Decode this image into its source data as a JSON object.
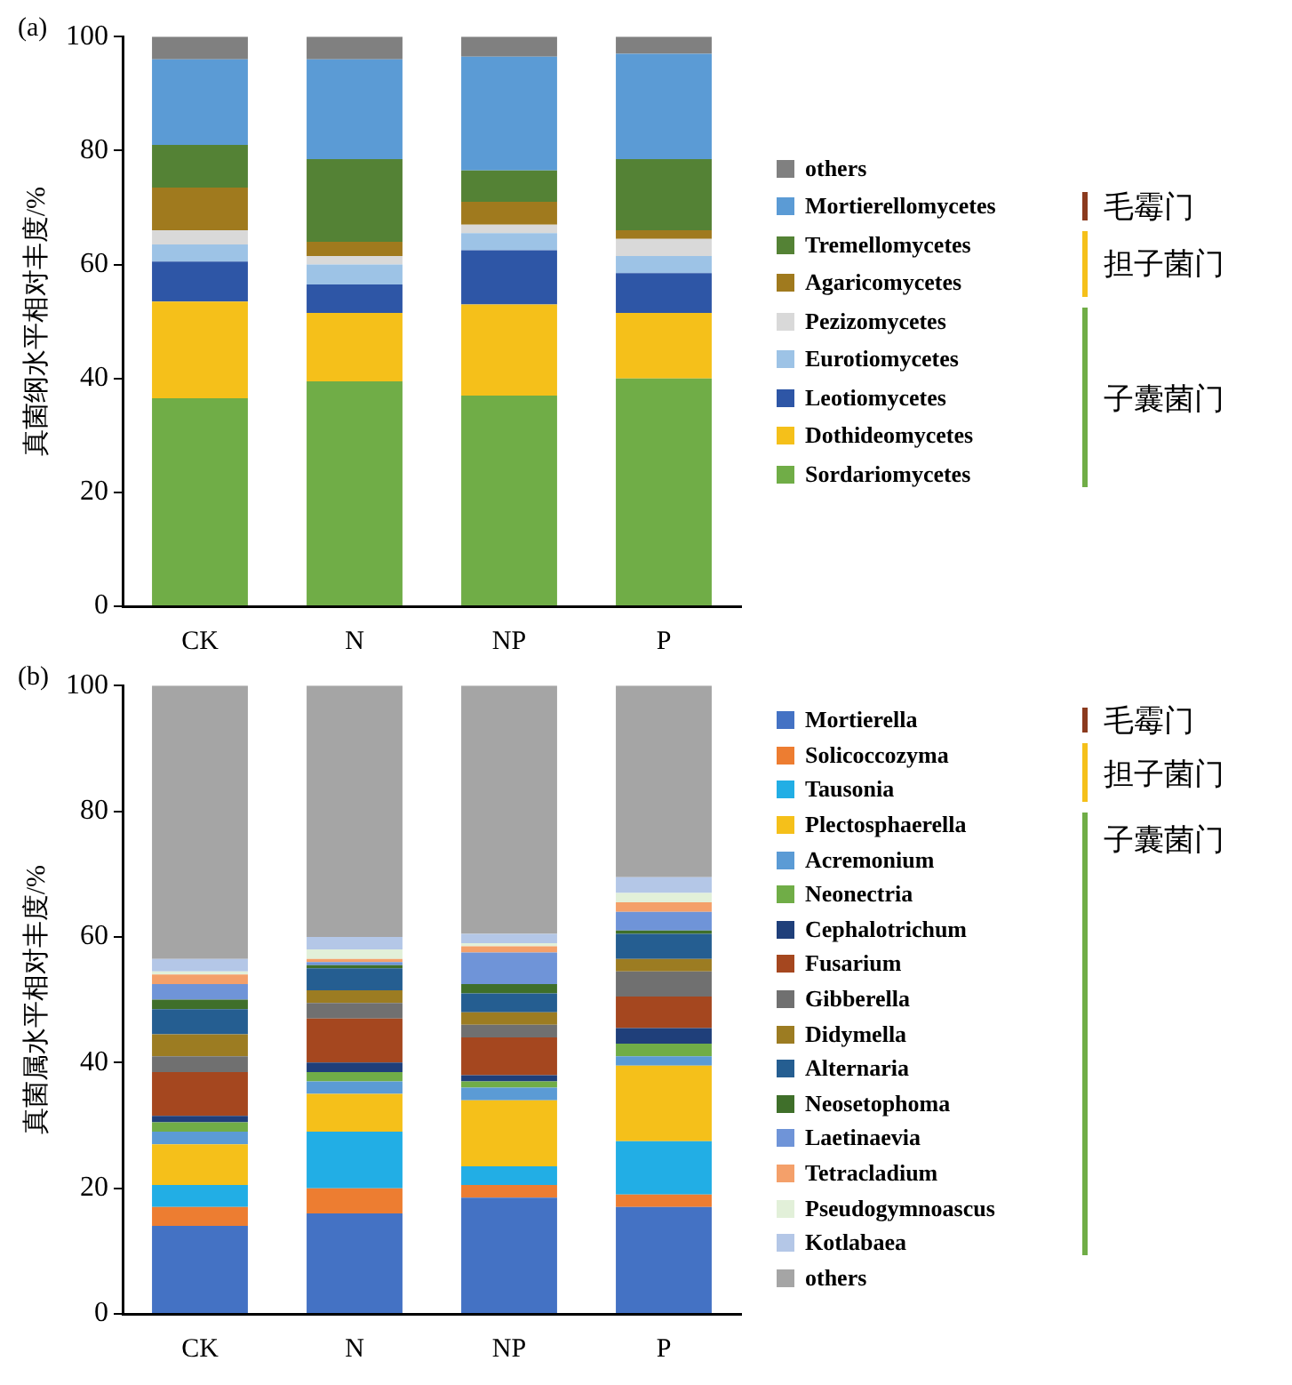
{
  "chart_data": [
    {
      "type": "bar",
      "stacked": true,
      "categories": [
        "CK",
        "N",
        "NP",
        "P"
      ],
      "ylabel": "真菌纲水平相对丰度/%",
      "ylim": [
        0,
        100
      ],
      "yticks": [
        0,
        20,
        40,
        60,
        80,
        100
      ],
      "legend": "right",
      "annotations": [
        "(a)",
        "毛霉门",
        "担子菌门",
        "子囊菌门"
      ],
      "series": [
        {
          "name": "Sordariomycetes",
          "color": "#70ad47",
          "values": [
            36.5,
            39.5,
            37,
            40
          ]
        },
        {
          "name": "Dothideomycetes",
          "color": "#f5c01a",
          "values": [
            17,
            12,
            16,
            11.5
          ]
        },
        {
          "name": "Leotiomycetes",
          "color": "#2e56a6",
          "values": [
            7,
            5,
            9.5,
            7
          ]
        },
        {
          "name": "Eurotiomycetes",
          "color": "#9dc3e6",
          "values": [
            3,
            3.5,
            3,
            3
          ]
        },
        {
          "name": "Pezizomycetes",
          "color": "#d9d9d9",
          "values": [
            2.5,
            1.5,
            1.5,
            3
          ]
        },
        {
          "name": "Agaricomycetes",
          "color": "#a07a1e",
          "values": [
            7.5,
            2.5,
            4,
            1.5
          ]
        },
        {
          "name": "Tremellomycetes",
          "color": "#548235",
          "values": [
            7.5,
            14.5,
            5.5,
            12.5
          ]
        },
        {
          "name": "Mortierellomycetes",
          "color": "#5b9bd5",
          "values": [
            15,
            17.5,
            20,
            18.5
          ]
        },
        {
          "name": "others",
          "color": "#808080",
          "values": [
            4,
            4,
            3.5,
            3
          ]
        }
      ]
    },
    {
      "type": "bar",
      "stacked": true,
      "categories": [
        "CK",
        "N",
        "NP",
        "P"
      ],
      "ylabel": "真菌属水平相对丰度/%",
      "ylim": [
        0,
        100
      ],
      "yticks": [
        0,
        20,
        40,
        60,
        80,
        100
      ],
      "legend": "right",
      "annotations": [
        "(b)",
        "毛霉门",
        "担子菌门",
        "子囊菌门"
      ],
      "series": [
        {
          "name": "Mortierella",
          "color": "#4472c4",
          "values": [
            14,
            16,
            18.5,
            17
          ]
        },
        {
          "name": "Solicoccozyma",
          "color": "#ed7d31",
          "values": [
            3,
            4,
            2,
            2
          ]
        },
        {
          "name": "Tausonia",
          "color": "#22aee5",
          "values": [
            3.5,
            9,
            3,
            8.5
          ]
        },
        {
          "name": "Plectosphaerella",
          "color": "#f5c01a",
          "values": [
            6.5,
            6,
            10.5,
            12
          ]
        },
        {
          "name": "Acremonium",
          "color": "#5b9bd5",
          "values": [
            2,
            2,
            2,
            1.5
          ]
        },
        {
          "name": "Neonectria",
          "color": "#70ad47",
          "values": [
            1.5,
            1.5,
            1,
            2
          ]
        },
        {
          "name": "Cephalotrichum",
          "color": "#1f3f7a",
          "values": [
            1,
            1.5,
            1,
            2.5
          ]
        },
        {
          "name": "Fusarium",
          "color": "#a5471f",
          "values": [
            7,
            7,
            6,
            5
          ]
        },
        {
          "name": "Gibberella",
          "color": "#707070",
          "values": [
            2.5,
            2.5,
            2,
            4
          ]
        },
        {
          "name": "Didymella",
          "color": "#9c7c22",
          "values": [
            3.5,
            2,
            2,
            2
          ]
        },
        {
          "name": "Alternaria",
          "color": "#255e91",
          "values": [
            4,
            3.5,
            3,
            4
          ]
        },
        {
          "name": "Neosetophoma",
          "color": "#3f6f2a",
          "values": [
            1.5,
            0.5,
            1.5,
            0.5
          ]
        },
        {
          "name": "Laetinaevia",
          "color": "#6f94d8",
          "values": [
            2.5,
            0.5,
            5,
            3
          ]
        },
        {
          "name": "Tetracladium",
          "color": "#f4a06a",
          "values": [
            1.5,
            0.5,
            1,
            1.5
          ]
        },
        {
          "name": "Pseudogymnoascus",
          "color": "#e2f0d9",
          "values": [
            0.5,
            1.5,
            0.5,
            1.5
          ]
        },
        {
          "name": "Kotlabaea",
          "color": "#b4c7e7",
          "values": [
            2,
            2,
            1.5,
            2.5
          ]
        },
        {
          "name": "others",
          "color": "#a5a5a5",
          "values": [
            43.5,
            40,
            39.5,
            30.5
          ]
        }
      ]
    }
  ]
}
